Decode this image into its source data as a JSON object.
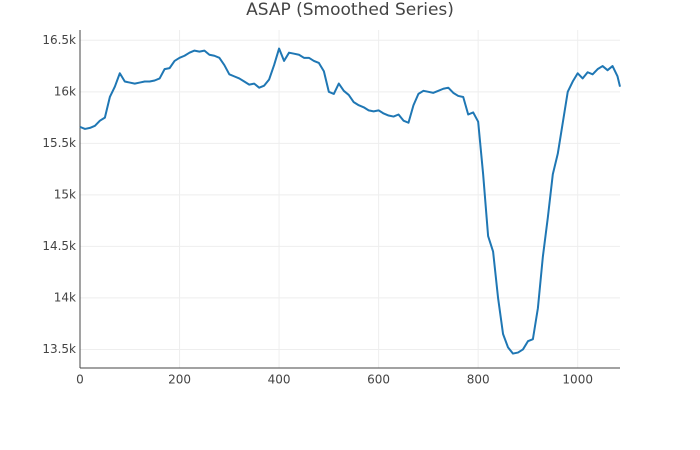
{
  "chart_data": {
    "type": "line",
    "title": "ASAP (Smoothed Series)",
    "x": [
      0,
      10,
      20,
      30,
      40,
      50,
      60,
      70,
      80,
      90,
      100,
      110,
      120,
      130,
      140,
      150,
      160,
      170,
      180,
      190,
      200,
      210,
      220,
      230,
      240,
      250,
      260,
      270,
      280,
      290,
      300,
      310,
      320,
      330,
      340,
      350,
      360,
      370,
      380,
      390,
      400,
      410,
      420,
      430,
      440,
      450,
      460,
      470,
      480,
      490,
      500,
      510,
      520,
      530,
      540,
      550,
      560,
      570,
      580,
      590,
      600,
      610,
      620,
      630,
      640,
      650,
      660,
      670,
      680,
      690,
      700,
      710,
      720,
      730,
      740,
      750,
      760,
      770,
      780,
      790,
      800,
      810,
      820,
      830,
      840,
      850,
      860,
      870,
      880,
      890,
      900,
      910,
      920,
      930,
      940,
      950,
      960,
      970,
      980,
      990,
      1000,
      1010,
      1020,
      1030,
      1040,
      1050,
      1060,
      1070,
      1080,
      1085
    ],
    "series": [
      {
        "name": "ASAP",
        "color": "#1f77b4",
        "values": [
          15660,
          15640,
          15650,
          15670,
          15720,
          15750,
          15950,
          16050,
          16180,
          16100,
          16090,
          16080,
          16090,
          16100,
          16100,
          16110,
          16130,
          16220,
          16230,
          16300,
          16330,
          16350,
          16380,
          16400,
          16390,
          16400,
          16360,
          16350,
          16330,
          16260,
          16170,
          16150,
          16130,
          16100,
          16070,
          16080,
          16040,
          16060,
          16120,
          16260,
          16420,
          16300,
          16380,
          16370,
          16360,
          16330,
          16330,
          16300,
          16280,
          16200,
          16000,
          15980,
          16080,
          16010,
          15970,
          15900,
          15870,
          15850,
          15820,
          15810,
          15820,
          15790,
          15770,
          15760,
          15780,
          15720,
          15700,
          15870,
          15980,
          16010,
          16000,
          15990,
          16010,
          16030,
          16040,
          15990,
          15960,
          15950,
          15780,
          15800,
          15710,
          15200,
          14600,
          14450,
          14000,
          13650,
          13520,
          13460,
          13470,
          13500,
          13580,
          13600,
          13900,
          14400,
          14780,
          15200,
          15400,
          15700,
          16000,
          16100,
          16180,
          16130,
          16190,
          16170,
          16220,
          16250,
          16210,
          16250,
          16150,
          16050
        ]
      }
    ],
    "xlim": [
      0,
      1085
    ],
    "ylim": [
      13320,
      16600
    ],
    "xticks": [
      0,
      200,
      400,
      600,
      800,
      1000
    ],
    "yticks": [
      {
        "value": 13500,
        "label": "13.5k"
      },
      {
        "value": 14000,
        "label": "14k"
      },
      {
        "value": 14500,
        "label": "14.5k"
      },
      {
        "value": 15000,
        "label": "15k"
      },
      {
        "value": 15500,
        "label": "15.5k"
      },
      {
        "value": 16000,
        "label": "16k"
      },
      {
        "value": 16500,
        "label": "16.5k"
      }
    ],
    "grid": true
  }
}
